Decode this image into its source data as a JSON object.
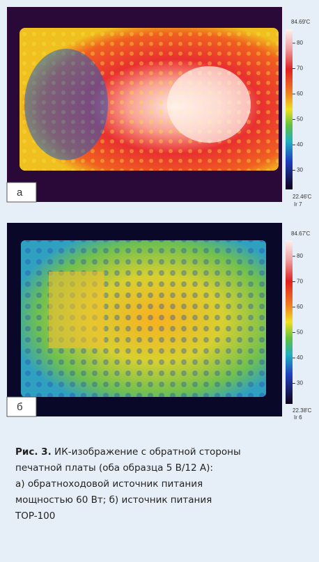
{
  "panel_a": {
    "label": "а",
    "scale_max": "84.69'C",
    "scale_min": "22.46'C",
    "scale_id": "Ir 7",
    "ticks": [
      80,
      70,
      60,
      50,
      40,
      30
    ]
  },
  "panel_b": {
    "label": "б",
    "scale_max": "84.67'C",
    "scale_min": "22.38'C",
    "scale_id": "Ir 6",
    "ticks": [
      80,
      70,
      60,
      50,
      40,
      30
    ]
  },
  "caption": {
    "label": "Рис. 3.",
    "lines": [
      "ИК-изображение с обратной стороны",
      "печатной платы (оба образца 5 В/12 А):",
      " а) обратноходовой источник питания",
      "мощностью 60 Вт; б) источник питания",
      "TOP-100"
    ]
  }
}
